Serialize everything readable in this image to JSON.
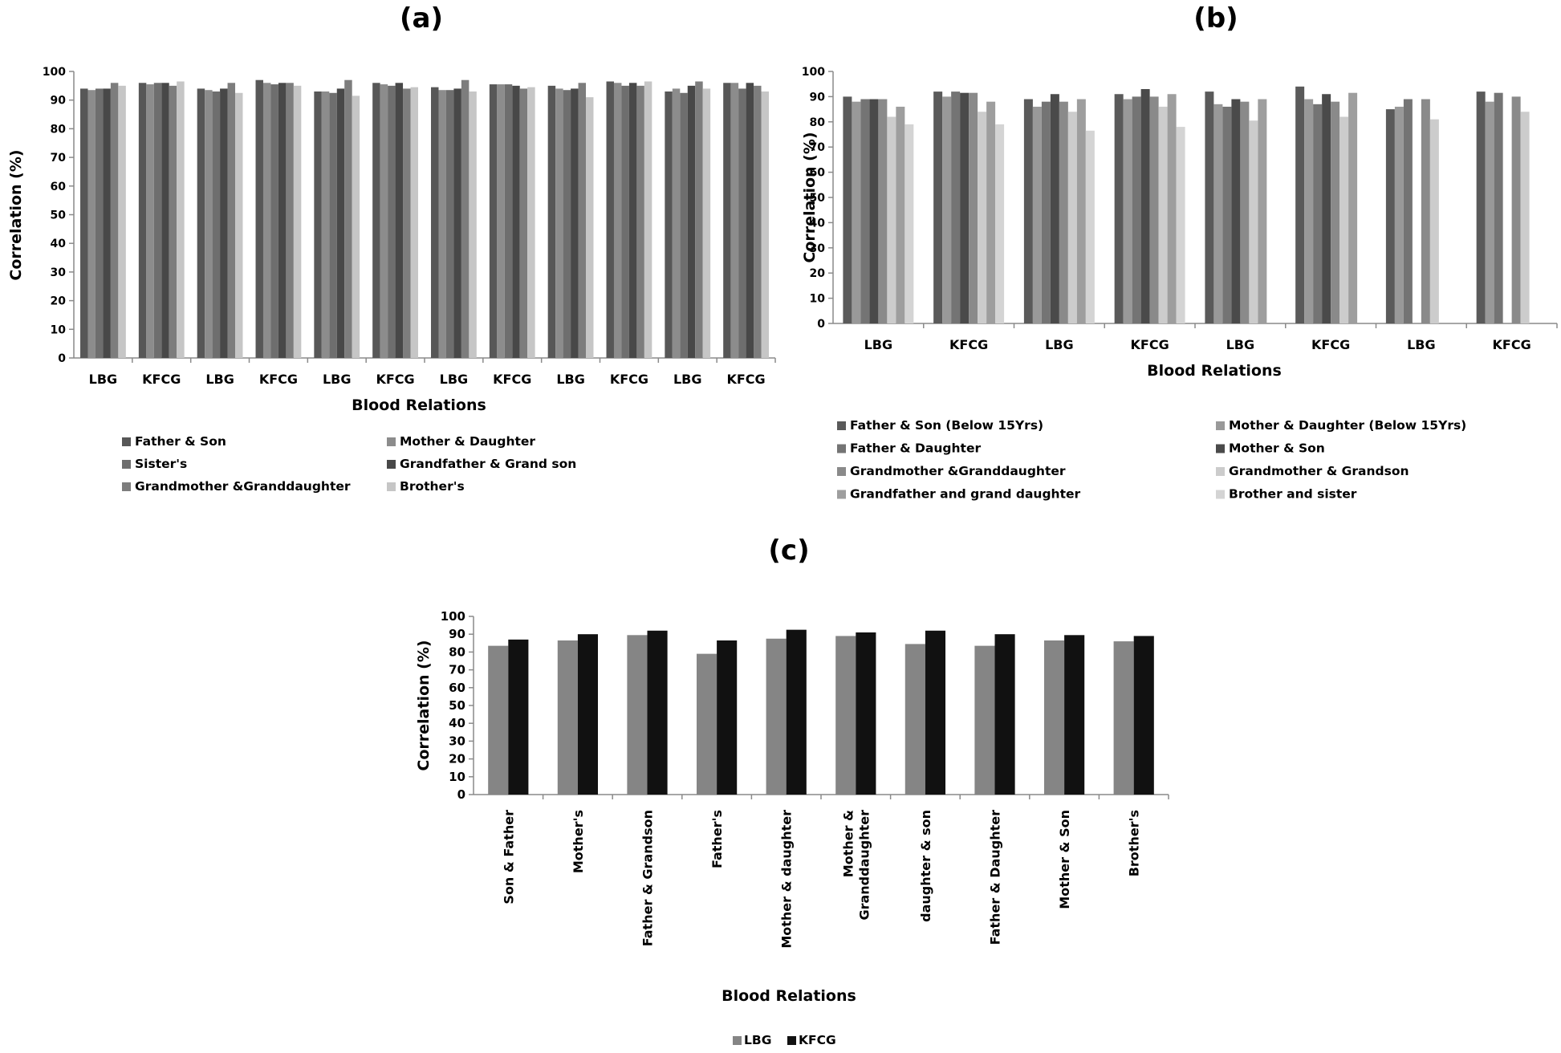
{
  "chart_data": [
    {
      "id": "a",
      "type": "bar",
      "panel_label": "(a)",
      "xlabel": "Blood Relations",
      "ylabel": "Correlation  (%)",
      "ylim": [
        0,
        100
      ],
      "yticks": [
        0,
        10,
        20,
        30,
        40,
        50,
        60,
        70,
        80,
        90,
        100
      ],
      "categories": [
        "LBG",
        "KFCG",
        "LBG",
        "KFCG",
        "LBG",
        "KFCG",
        "LBG",
        "KFCG",
        "LBG",
        "KFCG",
        "LBG",
        "KFCG"
      ],
      "legend_position": "bottom",
      "series": [
        {
          "name": "Father & Son",
          "color": "#575757",
          "values": [
            94,
            96,
            94,
            97,
            93,
            96,
            94.5,
            95.5,
            95,
            96.5,
            93,
            96
          ]
        },
        {
          "name": "Mother & Daughter",
          "color": "#8c8c8c",
          "values": [
            93.5,
            95.5,
            93.5,
            96,
            93,
            95.5,
            93.5,
            95.5,
            94,
            96,
            94,
            96
          ]
        },
        {
          "name": "Sister's",
          "color": "#6e6e6e",
          "values": [
            94,
            96,
            93,
            95.5,
            92.5,
            95,
            93.5,
            95.5,
            93.5,
            95,
            92.5,
            94
          ]
        },
        {
          "name": "Grandfather &  Grand son",
          "color": "#484848",
          "values": [
            94,
            96,
            94,
            96,
            94,
            96,
            94,
            95,
            94,
            96,
            95,
            96
          ]
        },
        {
          "name": "Grandmother &Granddaughter",
          "color": "#7d7d7d",
          "values": [
            96,
            95,
            96,
            96,
            97,
            94,
            97,
            94,
            96,
            95,
            96.5,
            95
          ]
        },
        {
          "name": "Brother's",
          "color": "#c6c6c6",
          "values": [
            95,
            96.5,
            92.5,
            95,
            91.5,
            94.5,
            93,
            94.5,
            91,
            96.5,
            94,
            93
          ]
        }
      ]
    },
    {
      "id": "b",
      "type": "bar",
      "panel_label": "(b)",
      "xlabel": "Blood Relations",
      "ylabel": "Correlation  (%)",
      "ylim": [
        0,
        100
      ],
      "yticks": [
        0,
        10,
        20,
        30,
        40,
        50,
        60,
        70,
        80,
        90,
        100
      ],
      "categories": [
        "LBG",
        "KFCG",
        "LBG",
        "KFCG",
        "LBG",
        "KFCG",
        "LBG",
        "KFCG"
      ],
      "legend_position": "bottom",
      "series": [
        {
          "name": "Father & Son (Below 15Yrs)",
          "color": "#5a5a5a",
          "values": [
            90,
            92,
            89,
            91,
            92,
            94,
            85,
            92
          ]
        },
        {
          "name": "Mother & Daughter (Below 15Yrs)",
          "color": "#999999",
          "values": [
            88,
            90,
            86,
            89,
            87,
            89,
            86,
            88
          ]
        },
        {
          "name": "Father & Daughter",
          "color": "#747474",
          "values": [
            89,
            92,
            88,
            90,
            86,
            87,
            89,
            91.5
          ]
        },
        {
          "name": "Mother & Son",
          "color": "#4a4a4a",
          "values": [
            89,
            91.5,
            91,
            93,
            89,
            91,
            null,
            null
          ]
        },
        {
          "name": "Grandmother &Granddaughter",
          "color": "#8a8a8a",
          "values": [
            89,
            91.5,
            88,
            90,
            88,
            88,
            89,
            90
          ]
        },
        {
          "name": "Grandmother & Grandson",
          "color": "#cccccc",
          "values": [
            82,
            84,
            84,
            86,
            80.5,
            82,
            81,
            84
          ]
        },
        {
          "name": "Grandfather and grand daughter",
          "color": "#9e9e9e",
          "values": [
            86,
            88,
            89,
            91,
            89,
            91.5,
            null,
            null
          ]
        },
        {
          "name": "Brother and sister",
          "color": "#d4d4d4",
          "values": [
            79,
            79,
            76.5,
            78,
            null,
            null,
            null,
            null
          ]
        }
      ]
    },
    {
      "id": "c",
      "type": "bar",
      "panel_label": "(c)",
      "xlabel": "Blood Relations",
      "ylabel": "Correlation  (%)",
      "ylim": [
        0,
        100
      ],
      "yticks": [
        0,
        10,
        20,
        30,
        40,
        50,
        60,
        70,
        80,
        90,
        100
      ],
      "categories": [
        "Son & Father",
        "Mother's",
        "Father & Grandson",
        "Father's",
        "Mother & daughter",
        "Mother & Granddaughter",
        "daughter & son",
        "Father & Daughter",
        "Mother & Son",
        "Brother's"
      ],
      "legend_position": "bottom",
      "series": [
        {
          "name": "LBG",
          "color": "#858585",
          "values": [
            83.5,
            86.5,
            89.5,
            79,
            87.5,
            89,
            84.5,
            83.5,
            86.5,
            86
          ]
        },
        {
          "name": "KFCG",
          "color": "#111111",
          "values": [
            87,
            90,
            92,
            86.5,
            92.5,
            91,
            92,
            90,
            89.5,
            89
          ]
        }
      ]
    }
  ]
}
